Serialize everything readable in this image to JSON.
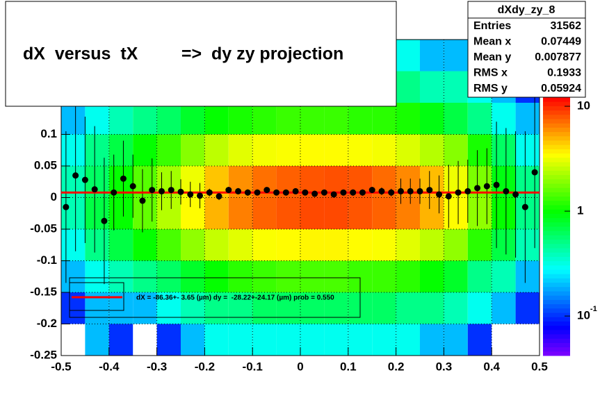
{
  "chart_data": {
    "type": "heatmap",
    "title": "dX  versus  tX         =>  dy zy projection",
    "xbins": [
      -0.5,
      -0.45,
      -0.4,
      -0.35,
      -0.3,
      -0.25,
      -0.2,
      -0.15,
      -0.1,
      -0.05,
      0,
      0.05,
      0.1,
      0.15,
      0.2,
      0.25,
      0.3,
      0.35,
      0.4,
      0.45,
      0.5
    ],
    "ybins": [
      -0.25,
      -0.2,
      -0.15,
      -0.1,
      -0.05,
      0,
      0.05,
      0.1,
      0.15,
      0.2,
      0.25
    ],
    "z": [
      [
        0,
        0.2,
        0.1,
        0,
        0.1,
        0.2,
        0.3,
        0.3,
        0.3,
        0.3,
        0.3,
        0.3,
        0.3,
        0.3,
        0.3,
        0.2,
        0.2,
        0.1,
        0,
        0
      ],
      [
        0.1,
        0.2,
        0.2,
        0.2,
        0.3,
        0.4,
        0.5,
        0.5,
        0.6,
        0.6,
        0.6,
        0.6,
        0.6,
        0.6,
        0.5,
        0.5,
        0.4,
        0.3,
        0.2,
        0.1
      ],
      [
        0.2,
        0.3,
        0.4,
        0.5,
        0.6,
        0.8,
        1,
        1.2,
        1.3,
        1.4,
        1.4,
        1.4,
        1.3,
        1.3,
        1.2,
        1,
        0.8,
        0.5,
        0.4,
        0.2
      ],
      [
        0.3,
        0.5,
        0.7,
        1,
        1.4,
        2,
        2.6,
        3,
        3.4,
        3.5,
        3.6,
        3.6,
        3.5,
        3.4,
        3,
        2.5,
        2,
        1.2,
        0.7,
        0.4
      ],
      [
        0.4,
        0.7,
        1,
        1.6,
        2.4,
        3.5,
        5,
        6.5,
        7.5,
        8,
        8.5,
        8.5,
        8,
        7.5,
        6.5,
        5,
        3.5,
        2,
        1,
        0.5
      ],
      [
        0.4,
        0.6,
        1,
        1.5,
        2.2,
        3.2,
        4.6,
        6,
        7,
        7.6,
        8,
        8.2,
        8,
        7.2,
        6.2,
        4.8,
        3.2,
        1.8,
        0.9,
        0.5
      ],
      [
        0.3,
        0.5,
        0.7,
        1,
        1.3,
        1.9,
        2.5,
        3,
        3.3,
        3.4,
        3.5,
        3.5,
        3.4,
        3.3,
        2.9,
        2.4,
        1.9,
        1.1,
        0.6,
        0.3
      ],
      [
        0.2,
        0.3,
        0.4,
        0.5,
        0.6,
        0.8,
        1,
        1.1,
        1.2,
        1.3,
        1.3,
        1.3,
        1.2,
        1.2,
        1.1,
        0.9,
        0.7,
        0.5,
        0.3,
        0.2
      ],
      [
        0.1,
        0.2,
        0.2,
        0.2,
        0.3,
        0.4,
        0.5,
        0.5,
        0.5,
        0.6,
        0.6,
        0.6,
        0.5,
        0.5,
        0.5,
        0.4,
        0.4,
        0.3,
        0.2,
        0.1
      ],
      [
        0,
        0.1,
        0.1,
        0.1,
        0.2,
        0.2,
        0.3,
        0.3,
        0.3,
        0.3,
        0.3,
        0.3,
        0.3,
        0.3,
        0.3,
        0.2,
        0.2,
        0.1,
        0.1,
        0
      ]
    ],
    "zlim": [
      0.042,
      12.2
    ],
    "zlog": true,
    "zticks": [
      {
        "value": 0.1,
        "label": "10",
        "exponent": "-1"
      },
      1,
      10
    ],
    "xlim": [
      -0.5,
      0.5
    ],
    "xticks": [
      -0.5,
      -0.4,
      -0.3,
      -0.2,
      -0.1,
      0,
      0.1,
      0.2,
      0.3,
      0.4,
      0.5
    ],
    "ylim": [
      -0.25,
      0.25
    ],
    "yticks": [
      -0.25,
      -0.2,
      -0.15,
      -0.1,
      -0.05,
      0,
      0.05,
      0.1
    ],
    "grid": true,
    "profile": {
      "color": "#000000",
      "x": [
        -0.49,
        -0.47,
        -0.45,
        -0.43,
        -0.41,
        -0.39,
        -0.37,
        -0.35,
        -0.33,
        -0.31,
        -0.29,
        -0.27,
        -0.25,
        -0.23,
        -0.21,
        -0.19,
        -0.17,
        -0.15,
        -0.13,
        -0.11,
        -0.09,
        -0.07,
        -0.05,
        -0.03,
        -0.01,
        0.01,
        0.03,
        0.05,
        0.07,
        0.09,
        0.11,
        0.13,
        0.15,
        0.17,
        0.19,
        0.21,
        0.23,
        0.25,
        0.27,
        0.29,
        0.31,
        0.33,
        0.35,
        0.37,
        0.39,
        0.41,
        0.43,
        0.45,
        0.47,
        0.49
      ],
      "values": [
        -0.015,
        0.035,
        0.028,
        0.013,
        -0.037,
        0.008,
        0.03,
        0.018,
        -0.005,
        0.012,
        0.01,
        0.012,
        0.009,
        0.005,
        0.003,
        0.008,
        0.002,
        0.012,
        0.01,
        0.008,
        0.008,
        0.012,
        0.008,
        0.008,
        0.01,
        0.008,
        0.006,
        0.008,
        0.005,
        0.008,
        0.008,
        0.008,
        0.012,
        0.01,
        0.008,
        0.01,
        0.01,
        0.01,
        0.012,
        0.005,
        0.002,
        0.008,
        0.01,
        0.015,
        0.018,
        0.02,
        0.01,
        0.005,
        -0.015,
        0.04
      ],
      "errors": [
        0.12,
        0.12,
        0.1,
        0.1,
        0.1,
        0.06,
        0.06,
        0.05,
        0.05,
        0.05,
        0.03,
        0.03,
        0.02,
        0.02,
        0.02,
        0.006,
        0.006,
        0.005,
        0.005,
        0.005,
        0.004,
        0.004,
        0.004,
        0.004,
        0.004,
        0.004,
        0.004,
        0.004,
        0.004,
        0.004,
        0.005,
        0.005,
        0.005,
        0.006,
        0.006,
        0.02,
        0.02,
        0.02,
        0.03,
        0.03,
        0.05,
        0.05,
        0.05,
        0.06,
        0.06,
        0.1,
        0.1,
        0.1,
        0.12,
        0.12
      ]
    },
    "fit": {
      "color": "#ff0000",
      "x": [
        -0.5,
        0.5
      ],
      "y": [
        0.008,
        0.008
      ]
    },
    "legend": {
      "label": "dX = -86.36+- 3.65 (µm) dy =  -28.22+-24.17 (µm) prob = 0.550"
    },
    "stats": {
      "name": "dXdy_zy_8",
      "rows": [
        [
          "Entries",
          31562
        ],
        [
          "Mean x",
          0.07449
        ],
        [
          "Mean y",
          0.007877
        ],
        [
          "RMS x",
          0.1933
        ],
        [
          "RMS y",
          0.05924
        ]
      ]
    }
  }
}
